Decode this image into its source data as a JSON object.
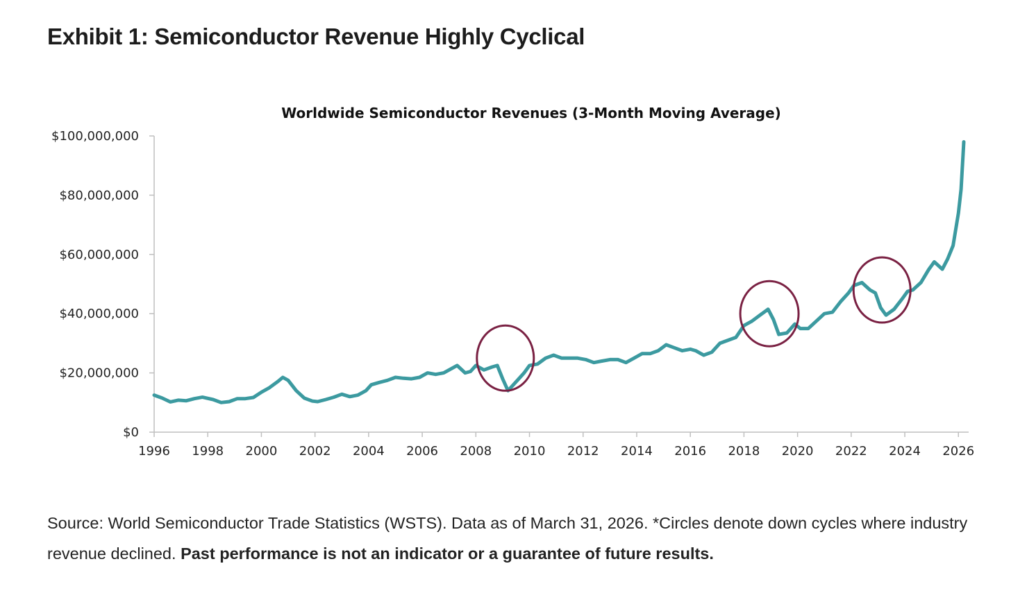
{
  "exhibit_title": "Exhibit 1: Semiconductor Revenue Highly Cyclical",
  "footnote": {
    "text": "Source: World Semiconductor Trade Statistics (WSTS). Data as of March 31, 2026. *Circles denote down cycles where industry revenue declined.",
    "bold_text": "Past performance is not an indicator or a guarantee of future results."
  },
  "colors": {
    "series": "#3c9aa0",
    "circles": "#7a2143",
    "axis": "#bfbfbf"
  },
  "chart_data": {
    "type": "line",
    "title": "Worldwide Semiconductor Revenues (3-Month Moving Average)",
    "xlabel": "",
    "ylabel": "",
    "xlim": [
      1996,
      2026.3
    ],
    "ylim": [
      0,
      100000000
    ],
    "x_ticks": [
      1996,
      1998,
      2000,
      2002,
      2004,
      2006,
      2008,
      2010,
      2012,
      2014,
      2016,
      2018,
      2020,
      2022,
      2024,
      2026
    ],
    "x_tick_labels": [
      "1996",
      "1998",
      "2000",
      "2002",
      "2004",
      "2006",
      "2008",
      "2010",
      "2012",
      "2014",
      "2016",
      "2018",
      "2020",
      "2022",
      "2024",
      "2026"
    ],
    "y_ticks": [
      0,
      20000000,
      40000000,
      60000000,
      80000000,
      100000000
    ],
    "y_tick_labels": [
      "$0",
      "$20,000,000",
      "$40,000,000",
      "$60,000,000",
      "$80,000,000",
      "$100,000,000"
    ],
    "grid": false,
    "legend": "none",
    "series": [
      {
        "x": [
          1996.0,
          1996.3,
          1996.6,
          1996.9,
          1997.2,
          1997.5,
          1997.8,
          1998.2,
          1998.5,
          1998.8,
          1999.1,
          1999.4,
          1999.7,
          2000.0,
          2000.3,
          2000.6,
          2000.8,
          2001.0,
          2001.3,
          2001.6,
          2001.9,
          2002.1,
          2002.4,
          2002.7,
          2003.0,
          2003.3,
          2003.6,
          2003.9,
          2004.1,
          2004.4,
          2004.7,
          2005.0,
          2005.3,
          2005.6,
          2005.9,
          2006.2,
          2006.5,
          2006.8,
          2007.0,
          2007.3,
          2007.6,
          2007.8,
          2008.0,
          2008.3,
          2008.6,
          2008.8,
          2009.0,
          2009.2,
          2009.5,
          2009.8,
          2010.0,
          2010.3,
          2010.6,
          2010.9,
          2011.2,
          2011.5,
          2011.8,
          2012.1,
          2012.4,
          2012.7,
          2013.0,
          2013.3,
          2013.6,
          2013.9,
          2014.2,
          2014.5,
          2014.8,
          2015.1,
          2015.4,
          2015.7,
          2016.0,
          2016.2,
          2016.5,
          2016.8,
          2017.1,
          2017.4,
          2017.7,
          2018.0,
          2018.3,
          2018.6,
          2018.9,
          2019.1,
          2019.3,
          2019.6,
          2019.9,
          2020.1,
          2020.4,
          2020.7,
          2021.0,
          2021.3,
          2021.6,
          2021.9,
          2022.1,
          2022.4,
          2022.7,
          2022.9,
          2023.1,
          2023.3,
          2023.6,
          2023.9,
          2024.1,
          2024.3,
          2024.6,
          2024.9,
          2025.1,
          2025.4,
          2025.6,
          2025.8,
          2026.0,
          2026.1,
          2026.2
        ],
        "y": [
          12500000,
          11500000,
          10200000,
          10800000,
          10600000,
          11300000,
          11800000,
          11000000,
          10000000,
          10300000,
          11300000,
          11300000,
          11700000,
          13500000,
          15000000,
          17000000,
          18500000,
          17500000,
          14000000,
          11500000,
          10500000,
          10300000,
          11000000,
          11800000,
          12800000,
          12000000,
          12500000,
          14000000,
          16000000,
          16800000,
          17500000,
          18500000,
          18200000,
          18000000,
          18500000,
          20000000,
          19500000,
          20000000,
          21000000,
          22500000,
          20000000,
          20500000,
          22500000,
          21000000,
          22000000,
          22500000,
          18000000,
          14000000,
          17000000,
          20000000,
          22500000,
          23000000,
          25000000,
          26000000,
          25000000,
          25000000,
          25000000,
          24500000,
          23500000,
          24000000,
          24500000,
          24500000,
          23500000,
          25000000,
          26500000,
          26500000,
          27500000,
          29500000,
          28500000,
          27500000,
          28000000,
          27500000,
          26000000,
          27000000,
          30000000,
          31000000,
          32000000,
          36000000,
          37500000,
          39500000,
          41500000,
          38000000,
          33000000,
          33500000,
          36500000,
          35000000,
          35000000,
          37500000,
          40000000,
          40500000,
          44000000,
          47000000,
          49500000,
          50500000,
          48000000,
          47000000,
          42000000,
          39500000,
          41500000,
          45000000,
          47500000,
          48000000,
          50500000,
          55000000,
          57500000,
          55000000,
          58500000,
          63000000,
          74000000,
          82000000,
          98000000
        ]
      }
    ],
    "annotations": [
      {
        "type": "circle",
        "label": "down cycle",
        "center_x": 2009.1,
        "center_y": 25000000
      },
      {
        "type": "circle",
        "label": "down cycle",
        "center_x": 2018.95,
        "center_y": 40000000
      },
      {
        "type": "circle",
        "label": "down cycle",
        "center_x": 2023.15,
        "center_y": 48000000
      }
    ]
  }
}
